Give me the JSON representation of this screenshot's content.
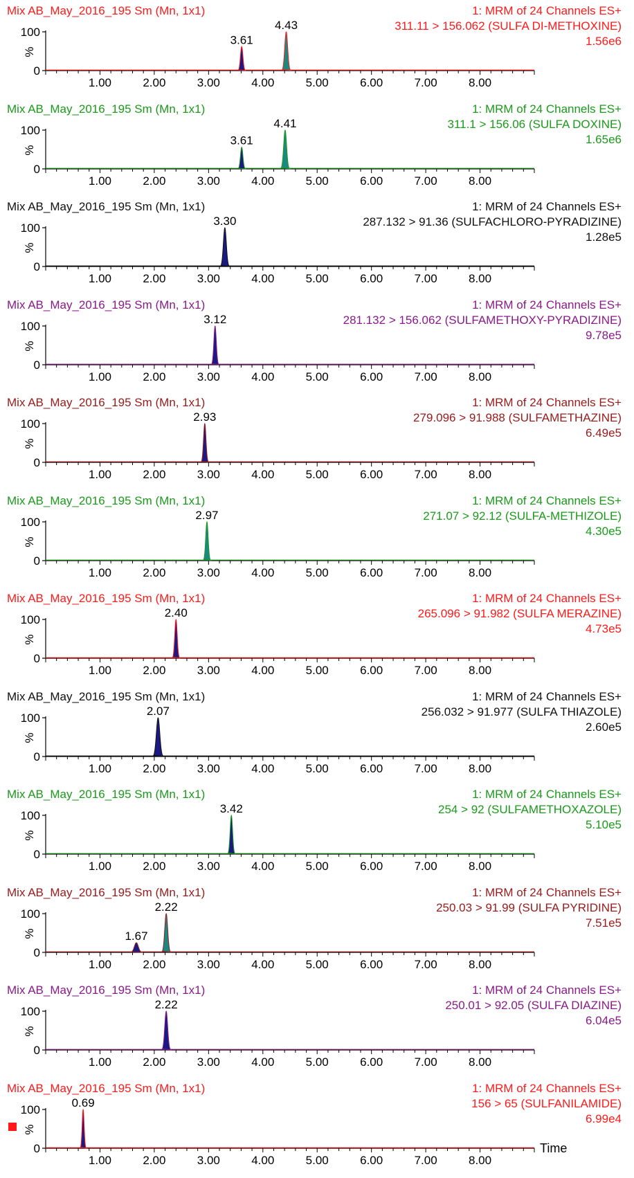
{
  "window": {
    "x_axis_label": "Time"
  },
  "colors": {
    "red": "#ff1a1a",
    "green": "#1a9a1a",
    "black": "#111111",
    "purple": "#8a1a8a",
    "darkred": "#9a1a1a",
    "peak_blue": "#1a1a80",
    "peak_teal": "#1a8a80"
  },
  "chart_data": [
    {
      "type": "line",
      "color": "red",
      "title": "Mix AB_May_2016_195 Sm (Mn, 1x1)",
      "channel": "1: MRM of 24 Channels ES+",
      "transition": "311.11 > 156.062 (SULFA DI-METHOXINE)",
      "intensity": "1.56e6",
      "peaks": [
        {
          "rt": 3.61,
          "label": "3.61",
          "rel_height": 62,
          "width": 0.05,
          "fill": "peak_blue"
        },
        {
          "rt": 4.43,
          "label": "4.43",
          "rel_height": 100,
          "width": 0.06,
          "fill": "peak_teal"
        }
      ],
      "xlim": [
        0,
        9.0
      ],
      "ylim": [
        0,
        100
      ],
      "xticks": [
        "1.00",
        "2.00",
        "3.00",
        "4.00",
        "5.00",
        "6.00",
        "7.00",
        "8.00"
      ],
      "yticks": [
        "0",
        "100"
      ],
      "ylabel": "%"
    },
    {
      "type": "line",
      "color": "green",
      "title": "Mix AB_May_2016_195 Sm (Mn, 1x1)",
      "channel": "1: MRM of 24 Channels ES+",
      "transition": "311.1 > 156.06 (SULFA DOXINE)",
      "intensity": "1.65e6",
      "peaks": [
        {
          "rt": 3.61,
          "label": "3.61",
          "rel_height": 56,
          "width": 0.05,
          "fill": "peak_blue"
        },
        {
          "rt": 4.41,
          "label": "4.41",
          "rel_height": 100,
          "width": 0.06,
          "fill": "peak_teal"
        }
      ],
      "xlim": [
        0,
        9.0
      ],
      "ylim": [
        0,
        100
      ],
      "xticks": [
        "1.00",
        "2.00",
        "3.00",
        "4.00",
        "5.00",
        "6.00",
        "7.00",
        "8.00"
      ],
      "yticks": [
        "0",
        "100"
      ],
      "ylabel": "%"
    },
    {
      "type": "line",
      "color": "black",
      "title": "Mix AB_May_2016_195 Sm (Mn, 1x1)",
      "channel": "1: MRM of 24 Channels ES+",
      "transition": "287.132 > 91.36 (SULFACHLORO-PYRADIZINE)",
      "intensity": "1.28e5",
      "peaks": [
        {
          "rt": 3.3,
          "label": "3.30",
          "rel_height": 100,
          "width": 0.06,
          "fill": "peak_blue"
        }
      ],
      "xlim": [
        0,
        9.0
      ],
      "ylim": [
        0,
        100
      ],
      "xticks": [
        "1.00",
        "2.00",
        "3.00",
        "4.00",
        "5.00",
        "6.00",
        "7.00",
        "8.00"
      ],
      "yticks": [
        "0",
        "100"
      ],
      "ylabel": "%"
    },
    {
      "type": "line",
      "color": "purple",
      "title": "Mix AB_May_2016_195 Sm (Mn, 1x1)",
      "channel": "1: MRM of 24 Channels ES+",
      "transition": "281.132 > 156.062 (SULFAMETHOXY-PYRADIZINE)",
      "intensity": "9.78e5",
      "peaks": [
        {
          "rt": 3.12,
          "label": "3.12",
          "rel_height": 100,
          "width": 0.05,
          "fill": "peak_blue"
        }
      ],
      "xlim": [
        0,
        9.0
      ],
      "ylim": [
        0,
        100
      ],
      "xticks": [
        "1.00",
        "2.00",
        "3.00",
        "4.00",
        "5.00",
        "6.00",
        "7.00",
        "8.00"
      ],
      "yticks": [
        "0",
        "100"
      ],
      "ylabel": "%"
    },
    {
      "type": "line",
      "color": "darkred",
      "title": "Mix AB_May_2016_195 Sm (Mn, 1x1)",
      "channel": "1: MRM of 24 Channels ES+",
      "transition": "279.096 > 91.988 (SULFAMETHAZINE)",
      "intensity": "6.49e5",
      "peaks": [
        {
          "rt": 2.93,
          "label": "2.93",
          "rel_height": 100,
          "width": 0.05,
          "fill": "peak_blue"
        }
      ],
      "xlim": [
        0,
        9.0
      ],
      "ylim": [
        0,
        100
      ],
      "xticks": [
        "1.00",
        "2.00",
        "3.00",
        "4.00",
        "5.00",
        "6.00",
        "7.00",
        "8.00"
      ],
      "yticks": [
        "0",
        "100"
      ],
      "ylabel": "%"
    },
    {
      "type": "line",
      "color": "green",
      "title": "Mix AB_May_2016_195 Sm (Mn, 1x1)",
      "channel": "1: MRM of 24 Channels ES+",
      "transition": "271.07 > 92.12 (SULFA-METHIZOLE)",
      "intensity": "4.30e5",
      "peaks": [
        {
          "rt": 2.97,
          "label": "2.97",
          "rel_height": 100,
          "width": 0.05,
          "fill": "peak_teal"
        }
      ],
      "xlim": [
        0,
        9.0
      ],
      "ylim": [
        0,
        100
      ],
      "xticks": [
        "1.00",
        "2.00",
        "3.00",
        "4.00",
        "5.00",
        "6.00",
        "7.00",
        "8.00"
      ],
      "yticks": [
        "0",
        "100"
      ],
      "ylabel": "%"
    },
    {
      "type": "line",
      "color": "red",
      "title": "Mix AB_May_2016_195 Sm (Mn, 1x1)",
      "channel": "1: MRM of 24 Channels ES+",
      "transition": "265.096 > 91.982 (SULFA MERAZINE)",
      "intensity": "4.73e5",
      "peaks": [
        {
          "rt": 2.4,
          "label": "2.40",
          "rel_height": 100,
          "width": 0.05,
          "fill": "peak_blue"
        }
      ],
      "xlim": [
        0,
        9.0
      ],
      "ylim": [
        0,
        100
      ],
      "xticks": [
        "1.00",
        "2.00",
        "3.00",
        "4.00",
        "5.00",
        "6.00",
        "7.00",
        "8.00"
      ],
      "yticks": [
        "0",
        "100"
      ],
      "ylabel": "%"
    },
    {
      "type": "line",
      "color": "black",
      "title": "Mix AB_May_2016_195 Sm (Mn, 1x1)",
      "channel": "1: MRM of 24 Channels ES+",
      "transition": "256.032 > 91.977 (SULFA THIAZOLE)",
      "intensity": "2.60e5",
      "peaks": [
        {
          "rt": 2.07,
          "label": "2.07",
          "rel_height": 100,
          "width": 0.07,
          "fill": "peak_blue"
        }
      ],
      "xlim": [
        0,
        9.0
      ],
      "ylim": [
        0,
        100
      ],
      "xticks": [
        "1.00",
        "2.00",
        "3.00",
        "4.00",
        "5.00",
        "6.00",
        "7.00",
        "8.00"
      ],
      "yticks": [
        "0",
        "100"
      ],
      "ylabel": "%"
    },
    {
      "type": "line",
      "color": "green",
      "title": "Mix AB_May_2016_195 Sm (Mn, 1x1)",
      "channel": "1: MRM of 24 Channels ES+",
      "transition": "254 > 92 (SULFAMETHOXAZOLE)",
      "intensity": "5.10e5",
      "peaks": [
        {
          "rt": 3.42,
          "label": "3.42",
          "rel_height": 100,
          "width": 0.05,
          "fill": "peak_blue"
        }
      ],
      "xlim": [
        0,
        9.0
      ],
      "ylim": [
        0,
        100
      ],
      "xticks": [
        "1.00",
        "2.00",
        "3.00",
        "4.00",
        "5.00",
        "6.00",
        "7.00",
        "8.00"
      ],
      "yticks": [
        "0",
        "100"
      ],
      "ylabel": "%"
    },
    {
      "type": "line",
      "color": "darkred",
      "title": "Mix AB_May_2016_195 Sm (Mn, 1x1)",
      "channel": "1: MRM of 24 Channels ES+",
      "transition": "250.03 > 91.99 (SULFA PYRIDINE)",
      "intensity": "7.51e5",
      "peaks": [
        {
          "rt": 1.67,
          "label": "1.67",
          "rel_height": 25,
          "width": 0.08,
          "fill": "peak_blue"
        },
        {
          "rt": 2.22,
          "label": "2.22",
          "rel_height": 100,
          "width": 0.06,
          "fill": "peak_teal"
        }
      ],
      "xlim": [
        0,
        9.0
      ],
      "ylim": [
        0,
        100
      ],
      "xticks": [
        "1.00",
        "2.00",
        "3.00",
        "4.00",
        "5.00",
        "6.00",
        "7.00",
        "8.00"
      ],
      "yticks": [
        "0",
        "100"
      ],
      "ylabel": "%"
    },
    {
      "type": "line",
      "color": "purple",
      "title": "Mix AB_May_2016_195 Sm (Mn, 1x1)",
      "channel": "1: MRM of 24 Channels ES+",
      "transition": "250.01 > 92.05 (SULFA DIAZINE)",
      "intensity": "6.04e5",
      "peaks": [
        {
          "rt": 2.22,
          "label": "2.22",
          "rel_height": 100,
          "width": 0.06,
          "fill": "peak_blue"
        }
      ],
      "xlim": [
        0,
        9.0
      ],
      "ylim": [
        0,
        100
      ],
      "xticks": [
        "1.00",
        "2.00",
        "3.00",
        "4.00",
        "5.00",
        "6.00",
        "7.00",
        "8.00"
      ],
      "yticks": [
        "0",
        "100"
      ],
      "ylabel": "%"
    },
    {
      "type": "line",
      "color": "red",
      "title": "Mix AB_May_2016_195 Sm (Mn, 1x1)",
      "channel": "1: MRM of 24 Channels ES+",
      "transition": "156 > 65 (SULFANILAMIDE)",
      "intensity": "6.99e4",
      "peaks": [
        {
          "rt": 0.69,
          "label": "0.69",
          "rel_height": 100,
          "width": 0.04,
          "fill": "peak_blue"
        }
      ],
      "xlim": [
        0,
        9.0
      ],
      "ylim": [
        0,
        100
      ],
      "xticks": [
        "1.00",
        "2.00",
        "3.00",
        "4.00",
        "5.00",
        "6.00",
        "7.00",
        "8.00"
      ],
      "yticks": [
        "0",
        "100"
      ],
      "ylabel": "%"
    }
  ]
}
